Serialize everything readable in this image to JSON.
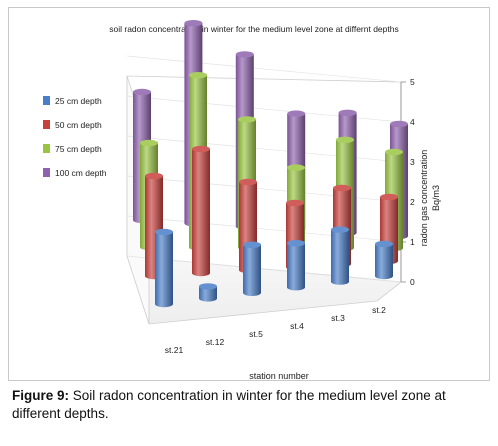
{
  "chart_data": {
    "type": "bar",
    "title": "soil radon concentration in winter for the medium level zone at differnt depths",
    "xlabel": "station number",
    "ylabel_line1": "radon gas concentration",
    "ylabel_line2": "Bq/m3",
    "categories": [
      "st.21",
      "st.12",
      "st.5",
      "st.4",
      "st.3",
      "st.2"
    ],
    "ylim": [
      0,
      5
    ],
    "yticks": [
      "0",
      "1",
      "2",
      "3",
      "4",
      "5"
    ],
    "legend_position": "left",
    "series": [
      {
        "name": "25 cm depth",
        "color": "#4a7ec8",
        "values": [
          1.8,
          0.3,
          1.2,
          1.1,
          1.3,
          0.8
        ]
      },
      {
        "name": "50 cm depth",
        "color": "#c8403c",
        "values": [
          2.5,
          3.1,
          2.2,
          1.6,
          1.9,
          1.6
        ]
      },
      {
        "name": "75 cm depth",
        "color": "#9ac543",
        "values": [
          2.6,
          4.3,
          3.2,
          2.0,
          2.7,
          2.4
        ]
      },
      {
        "name": "100 cm depth",
        "color": "#8e62ad",
        "values": [
          3.2,
          5.0,
          4.3,
          2.9,
          3.0,
          2.8
        ]
      }
    ]
  },
  "caption": {
    "label": "Figure 9:",
    "text": " Soil radon concentration in winter for the medium level zone at different depths."
  }
}
